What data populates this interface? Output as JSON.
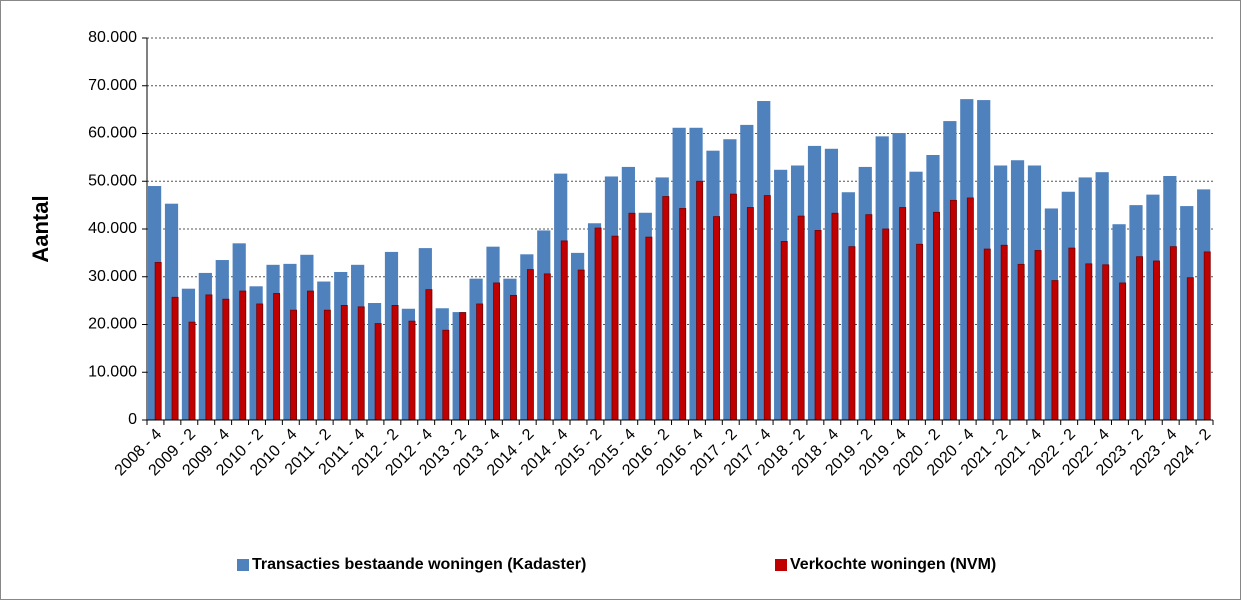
{
  "chart_data": {
    "type": "bar",
    "ylabel": "Aantal",
    "categories": [
      "2008 - 4",
      null,
      "2009 - 2",
      null,
      "2009 - 4",
      null,
      "2010 - 2",
      null,
      "2010 - 4",
      null,
      "2011 - 2",
      null,
      "2011 - 4",
      null,
      "2012 - 2",
      null,
      "2012 - 4",
      null,
      "2013 - 2",
      null,
      "2013 - 4",
      null,
      "2014 - 2",
      null,
      "2014 - 4",
      null,
      "2015 - 2",
      null,
      "2015 - 4",
      null,
      "2016 - 2",
      null,
      "2016 - 4",
      null,
      "2017 - 2",
      null,
      "2017 - 4",
      null,
      "2018 - 2",
      null,
      "2018 - 4",
      null,
      "2019 - 2",
      null,
      "2019 - 4",
      null,
      "2020 - 2",
      null,
      "2020 - 4",
      null,
      "2021 - 2",
      null,
      "2021 - 4",
      null,
      "2022 - 2",
      null,
      "2022 - 4",
      null,
      "2023 - 2",
      null,
      "2023 - 4",
      null,
      "2024 - 2"
    ],
    "series": [
      {
        "name": "Transacties bestaande woningen (Kadaster)",
        "color": "#4f81bd",
        "values": [
          49000,
          45300,
          27500,
          30800,
          33500,
          37000,
          28000,
          32500,
          32700,
          34600,
          29000,
          31000,
          32500,
          24500,
          35200,
          23300,
          36000,
          23400,
          22600,
          29600,
          36300,
          29600,
          34700,
          39700,
          51600,
          35000,
          41200,
          51000,
          53000,
          43400,
          50800,
          61200,
          61200,
          56400,
          58800,
          61800,
          66800,
          52400,
          53300,
          57400,
          56800,
          47700,
          53000,
          59400,
          60100,
          52000,
          55500,
          62600,
          67200,
          67000,
          53300,
          54400,
          53300,
          44300,
          47800,
          50800,
          51900,
          41000,
          45000,
          47200,
          51100,
          44800,
          48300
        ]
      },
      {
        "name": "Verkochte woningen (NVM)",
        "color": "#c00000",
        "values": [
          33000,
          25700,
          20500,
          26200,
          25300,
          27000,
          24300,
          26500,
          23000,
          27000,
          23000,
          24000,
          23700,
          20200,
          24000,
          20700,
          27300,
          18800,
          22500,
          24300,
          28700,
          26100,
          31500,
          30600,
          37500,
          31400,
          40200,
          38500,
          43300,
          38300,
          46800,
          44300,
          50000,
          42600,
          47300,
          44500,
          47000,
          37400,
          42700,
          39700,
          43300,
          36300,
          43000,
          40000,
          44500,
          36800,
          43500,
          46000,
          46500,
          35800,
          36600,
          32600,
          35500,
          29200,
          36000,
          32700,
          32500,
          28700,
          34200,
          33300,
          36300,
          29800,
          35200
        ]
      }
    ],
    "ylim": [
      0,
      80000
    ],
    "yticks": [
      0,
      {
        "value": 10000,
        "label": "10.000"
      },
      {
        "value": 20000,
        "label": "20.000"
      },
      {
        "value": 30000,
        "label": "30.000"
      },
      {
        "value": 40000,
        "label": "40.000"
      },
      {
        "value": 50000,
        "label": "50.000"
      },
      {
        "value": 60000,
        "label": "60.000"
      },
      {
        "value": 70000,
        "label": "70.000"
      },
      {
        "value": 80000,
        "label": "80.000"
      }
    ],
    "grid": true,
    "legend": "bottom"
  }
}
